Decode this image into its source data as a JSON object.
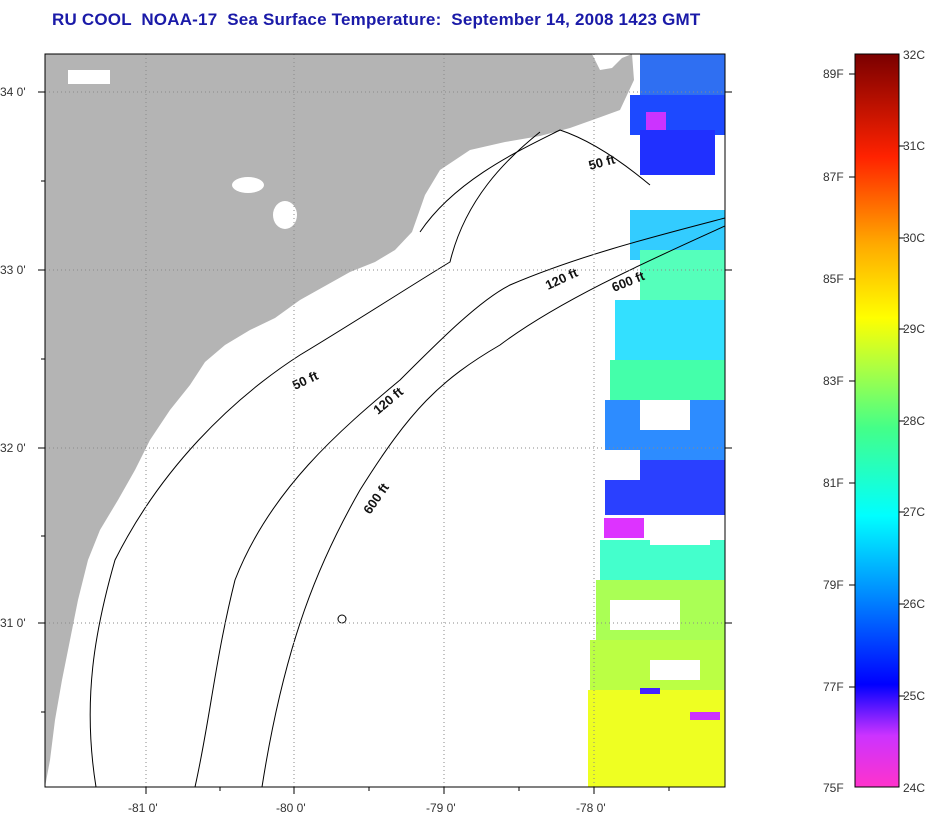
{
  "title": "RU COOL  NOAA-17  Sea Surface Temperature:  September 14, 2008 1423 GMT",
  "map": {
    "lat_labels": [
      "34 0'",
      "33 0'",
      "32 0'",
      "31 0'"
    ],
    "lon_labels": [
      "-81 0'",
      "-80 0'",
      "-79 0'",
      "-78 0'"
    ],
    "contours": [
      "50 ft",
      "50 ft",
      "120 ft",
      "120 ft",
      "600 ft",
      "600 ft"
    ],
    "colors": {
      "land": "#b4b4b4",
      "ocean": "#ffffff",
      "gridline": "#8a8a8a"
    }
  },
  "colorbar": {
    "fahrenheit": [
      "89F",
      "87F",
      "85F",
      "83F",
      "81F",
      "79F",
      "77F",
      "75F"
    ],
    "celsius": [
      "32C",
      "31C",
      "30C",
      "29C",
      "28C",
      "27C",
      "26C",
      "25C",
      "24C"
    ],
    "range_c": [
      24,
      32
    ]
  }
}
